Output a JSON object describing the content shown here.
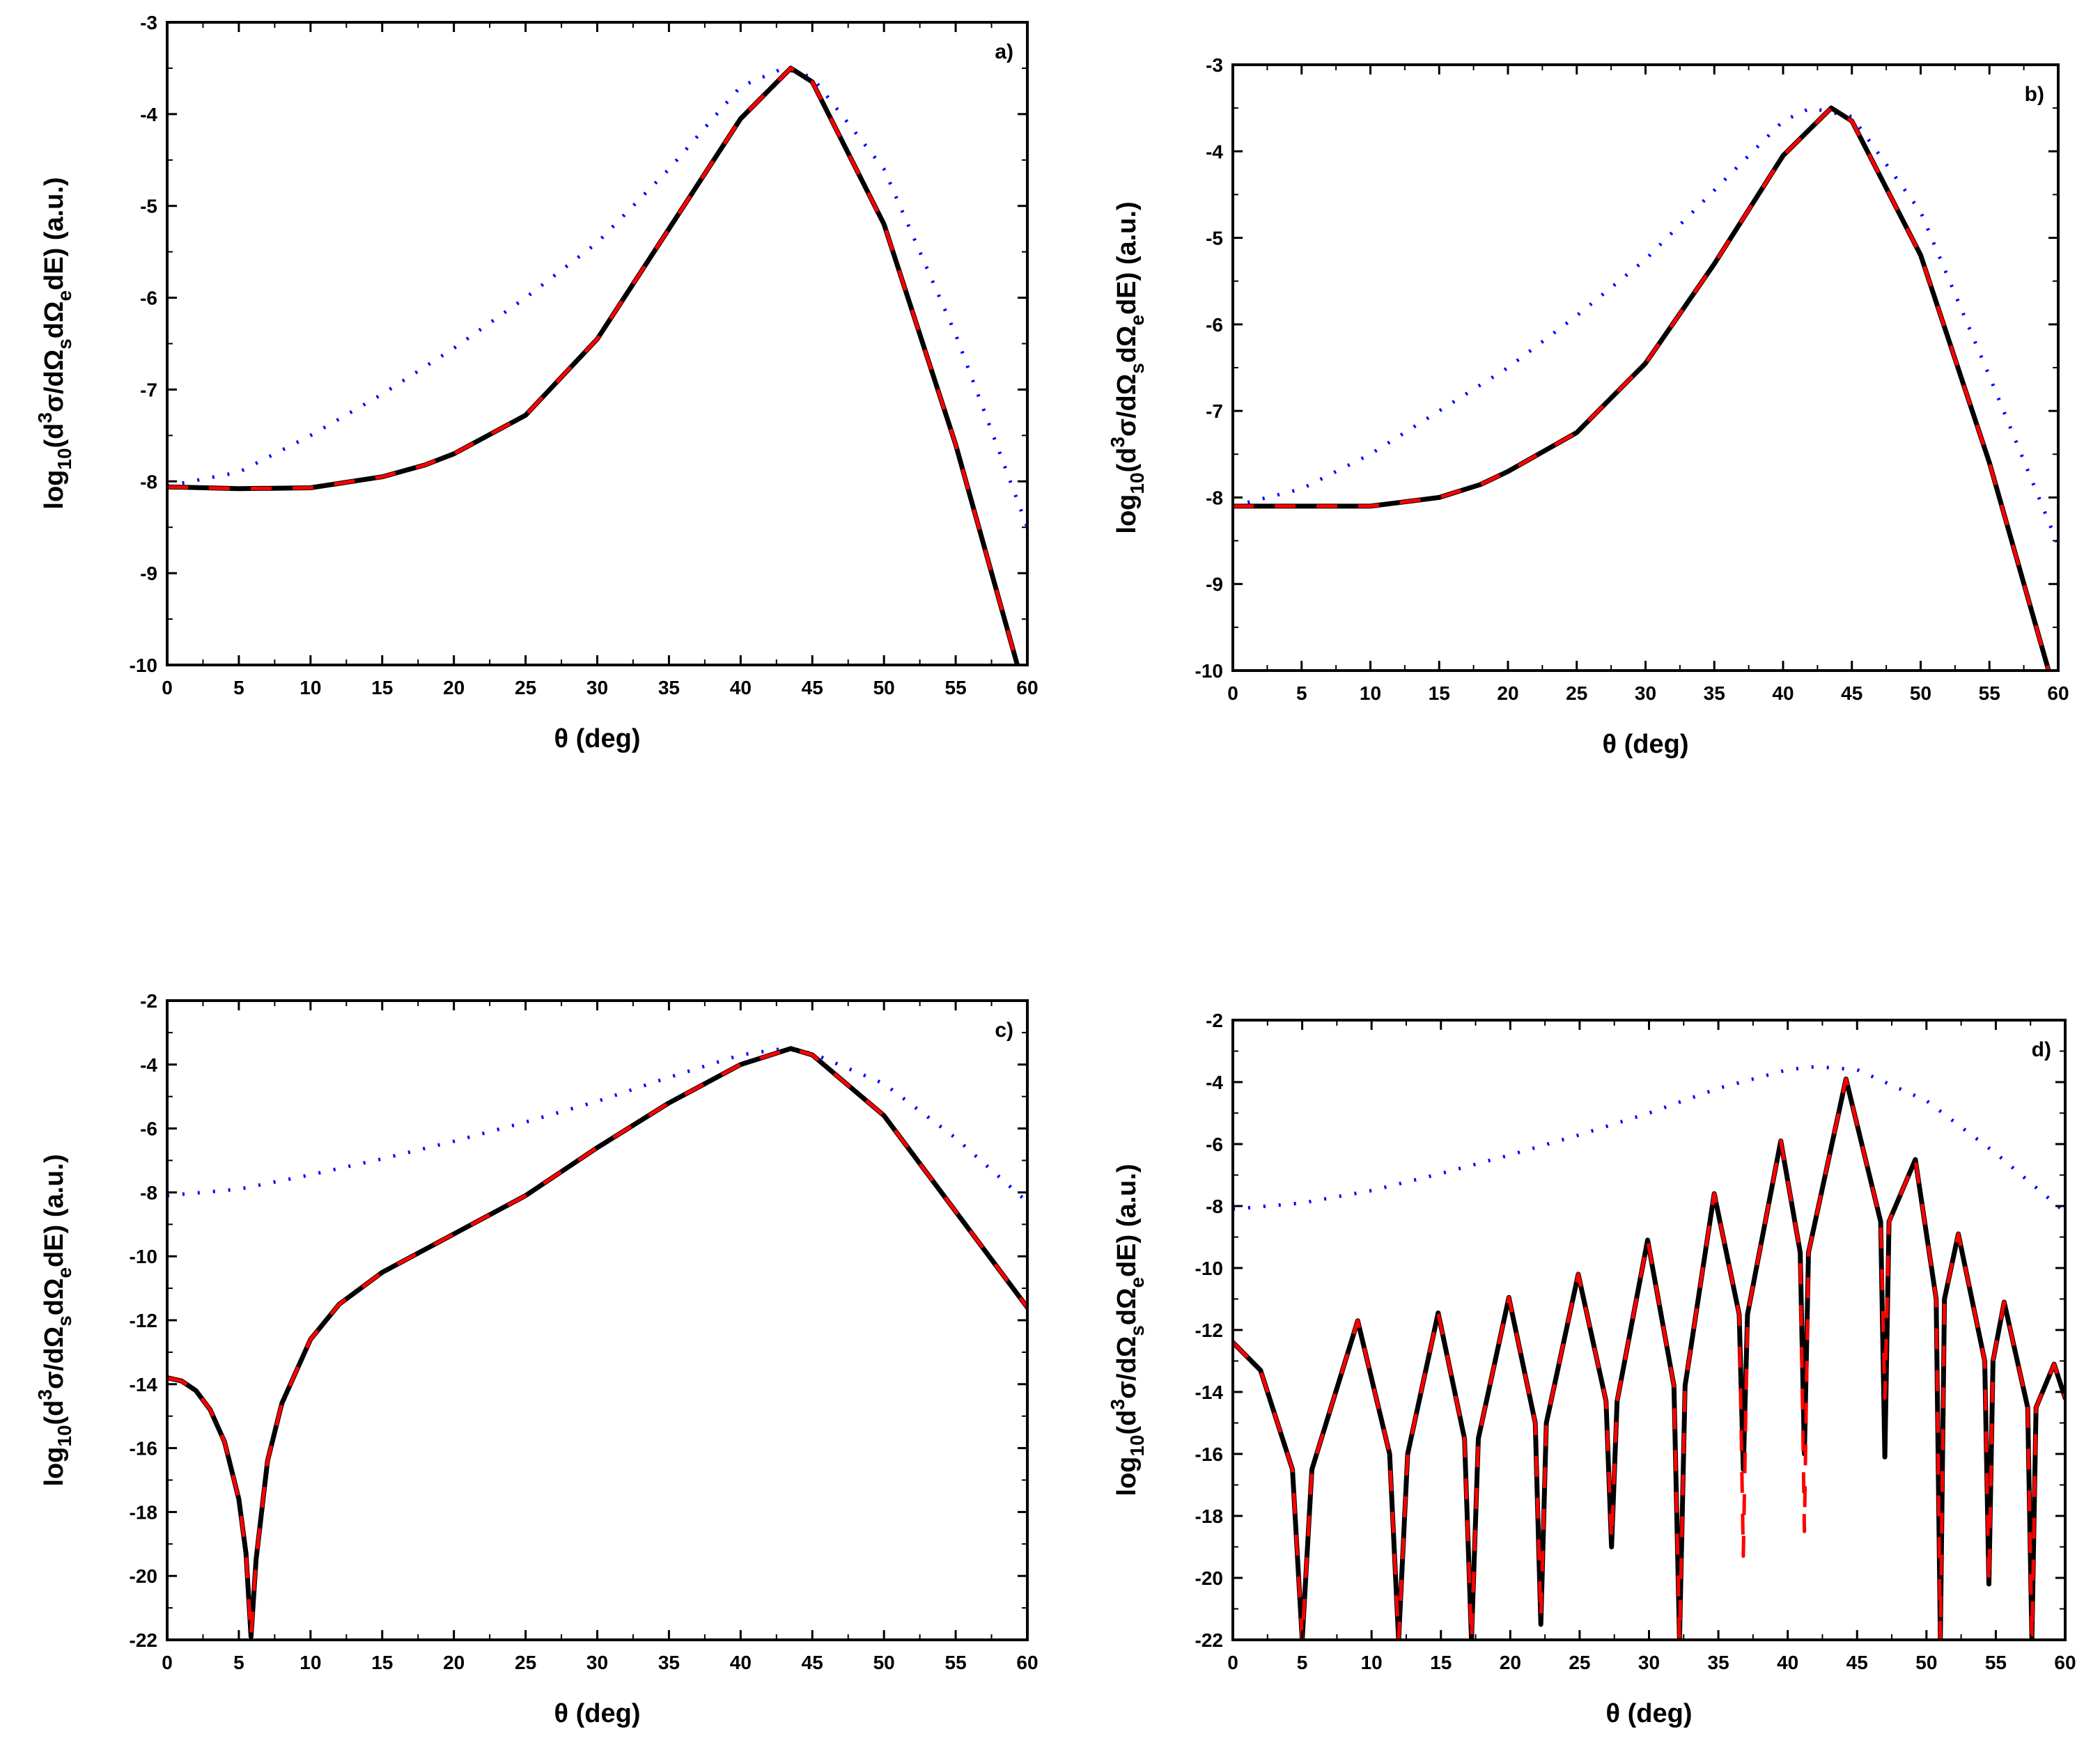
{
  "chart_data": [
    {
      "panel": "a)",
      "type": "line",
      "xlabel": "θ (deg)",
      "ylabel": "log10(d3σ/dΩs dΩe dE) (a.u.)",
      "xlim": [
        0,
        60
      ],
      "ylim": [
        -10,
        -3
      ],
      "xticks": [
        0,
        5,
        10,
        15,
        20,
        25,
        30,
        35,
        40,
        45,
        50,
        55,
        60
      ],
      "yticks": [
        -10,
        -9,
        -8,
        -7,
        -6,
        -5,
        -4,
        -3
      ],
      "series": [
        {
          "name": "dotted",
          "style": "dotted",
          "color": "#0000ff",
          "x": [
            0,
            5,
            10,
            15,
            20,
            25,
            30,
            35,
            40,
            43,
            45,
            50,
            55,
            60
          ],
          "y": [
            -8.05,
            -7.9,
            -7.5,
            -7.05,
            -6.55,
            -6.0,
            -5.4,
            -4.6,
            -3.7,
            -3.5,
            -3.6,
            -4.6,
            -6.4,
            -8.5
          ]
        },
        {
          "name": "solid",
          "style": "solid",
          "color": "#000000",
          "x": [
            0,
            5,
            10,
            15,
            18,
            20,
            25,
            30,
            35,
            40,
            43.5,
            45,
            50,
            55,
            59.3
          ],
          "y": [
            -8.06,
            -8.08,
            -8.07,
            -7.95,
            -7.82,
            -7.7,
            -7.28,
            -6.45,
            -5.25,
            -4.05,
            -3.5,
            -3.65,
            -5.2,
            -7.6,
            -10.0
          ]
        },
        {
          "name": "dashed",
          "style": "dashed",
          "color": "#ff0000",
          "x": [
            0,
            5,
            10,
            15,
            18,
            20,
            25,
            30,
            35,
            40,
            43.5,
            45,
            50,
            55,
            59.3
          ],
          "y": [
            -8.06,
            -8.08,
            -8.07,
            -7.95,
            -7.82,
            -7.7,
            -7.28,
            -6.45,
            -5.25,
            -4.05,
            -3.5,
            -3.65,
            -5.2,
            -7.6,
            -10.0
          ]
        }
      ]
    },
    {
      "panel": "b)",
      "type": "line",
      "xlabel": "θ (deg)",
      "ylabel": "log10(d3σ/dΩs dΩe dE) (a.u.)",
      "xlim": [
        0,
        60
      ],
      "ylim": [
        -10,
        -3
      ],
      "xticks": [
        0,
        5,
        10,
        15,
        20,
        25,
        30,
        35,
        40,
        45,
        50,
        55,
        60
      ],
      "yticks": [
        -10,
        -9,
        -8,
        -7,
        -6,
        -5,
        -4,
        -3
      ],
      "series": [
        {
          "name": "dotted",
          "style": "dotted",
          "color": "#0000ff",
          "x": [
            0,
            5,
            10,
            15,
            20,
            25,
            30,
            35,
            40,
            42,
            45,
            50,
            55,
            60
          ],
          "y": [
            -8.1,
            -7.9,
            -7.5,
            -7.0,
            -6.5,
            -5.9,
            -5.25,
            -4.45,
            -3.65,
            -3.5,
            -3.6,
            -4.7,
            -6.6,
            -8.55
          ]
        },
        {
          "name": "solid",
          "style": "solid",
          "color": "#000000",
          "x": [
            0,
            5,
            10,
            15,
            18,
            20,
            25,
            30,
            35,
            40,
            43.5,
            45,
            50,
            55,
            59.3
          ],
          "y": [
            -8.1,
            -8.1,
            -8.1,
            -8.0,
            -7.85,
            -7.7,
            -7.25,
            -6.45,
            -5.3,
            -4.05,
            -3.5,
            -3.65,
            -5.2,
            -7.6,
            -10.0
          ]
        },
        {
          "name": "dashed",
          "style": "dashed",
          "color": "#ff0000",
          "x": [
            0,
            5,
            10,
            15,
            18,
            20,
            25,
            30,
            35,
            40,
            43.5,
            45,
            50,
            55,
            59.3
          ],
          "y": [
            -8.1,
            -8.1,
            -8.1,
            -8.0,
            -7.85,
            -7.7,
            -7.25,
            -6.45,
            -5.3,
            -4.05,
            -3.5,
            -3.65,
            -5.2,
            -7.6,
            -10.0
          ]
        }
      ]
    },
    {
      "panel": "c)",
      "type": "line",
      "xlabel": "θ (deg)",
      "ylabel": "log10(d3σ/dΩs dΩe dE) (a.u.)",
      "xlim": [
        0,
        60
      ],
      "ylim": [
        -22,
        -2
      ],
      "xticks": [
        0,
        5,
        10,
        15,
        20,
        25,
        30,
        35,
        40,
        45,
        50,
        55,
        60
      ],
      "yticks": [
        -22,
        -20,
        -18,
        -16,
        -14,
        -12,
        -10,
        -8,
        -6,
        -4,
        -2
      ],
      "series": [
        {
          "name": "dotted",
          "style": "dotted",
          "color": "#0000ff",
          "x": [
            0,
            5,
            10,
            15,
            20,
            25,
            30,
            35,
            40,
            43,
            45,
            50,
            55,
            60
          ],
          "y": [
            -8.1,
            -7.9,
            -7.45,
            -6.95,
            -6.4,
            -5.8,
            -5.15,
            -4.4,
            -3.7,
            -3.5,
            -3.65,
            -4.6,
            -6.3,
            -8.3
          ]
        },
        {
          "name": "solid",
          "style": "solid",
          "color": "#000000",
          "x": [
            0,
            1,
            2,
            3,
            4,
            5,
            5.5,
            5.85,
            6.2,
            7,
            8,
            10,
            12,
            15,
            20,
            25,
            30,
            35,
            40,
            43.5,
            45,
            50,
            55,
            60
          ],
          "y": [
            -13.8,
            -13.9,
            -14.2,
            -14.8,
            -15.8,
            -17.6,
            -19.3,
            -21.9,
            -19.5,
            -16.4,
            -14.6,
            -12.6,
            -11.5,
            -10.5,
            -9.3,
            -8.1,
            -6.6,
            -5.2,
            -4.0,
            -3.5,
            -3.7,
            -5.6,
            -8.6,
            -11.6
          ]
        },
        {
          "name": "dashed",
          "style": "dashed",
          "color": "#ff0000",
          "x": [
            0,
            1,
            2,
            3,
            4,
            5,
            5.5,
            5.85,
            6.2,
            7,
            8,
            10,
            12,
            15,
            20,
            25,
            30,
            35,
            40,
            43.5,
            45,
            50,
            55,
            60
          ],
          "y": [
            -13.8,
            -13.9,
            -14.2,
            -14.8,
            -15.8,
            -17.6,
            -19.3,
            -21.9,
            -19.5,
            -16.4,
            -14.6,
            -12.6,
            -11.5,
            -10.5,
            -9.3,
            -8.1,
            -6.6,
            -5.2,
            -4.0,
            -3.5,
            -3.7,
            -5.6,
            -8.6,
            -11.6
          ]
        }
      ]
    },
    {
      "panel": "d)",
      "type": "line",
      "xlabel": "θ (deg)",
      "ylabel": "log10(d3σ/dΩs dΩe dE) (a.u.)",
      "xlim": [
        0,
        60
      ],
      "ylim": [
        -22,
        -2
      ],
      "xticks": [
        0,
        5,
        10,
        15,
        20,
        25,
        30,
        35,
        40,
        45,
        50,
        55,
        60
      ],
      "yticks": [
        -22,
        -20,
        -18,
        -16,
        -14,
        -12,
        -10,
        -8,
        -6,
        -4,
        -2
      ],
      "series": [
        {
          "name": "dotted",
          "style": "dotted",
          "color": "#0000ff",
          "x": [
            0,
            5,
            10,
            15,
            20,
            25,
            30,
            35,
            40,
            42,
            45,
            50,
            55,
            60
          ],
          "y": [
            -8.1,
            -7.9,
            -7.5,
            -6.95,
            -6.35,
            -5.7,
            -5.0,
            -4.2,
            -3.6,
            -3.5,
            -3.6,
            -4.6,
            -6.3,
            -8.2
          ]
        },
        {
          "name": "solid",
          "style": "solid",
          "color": "#000000",
          "x": [
            0,
            2,
            4.3,
            5.0,
            5.7,
            9.0,
            11.3,
            11.95,
            12.6,
            14.8,
            16.7,
            17.2,
            17.7,
            19.9,
            21.8,
            22.2,
            22.6,
            24.9,
            26.9,
            27.3,
            27.7,
            29.9,
            31.8,
            32.2,
            32.6,
            34.7,
            36.5,
            36.8,
            37.1,
            39.5,
            40.9,
            41.2,
            41.5,
            44.2,
            46.7,
            47.0,
            47.3,
            49.2,
            50.7,
            51.0,
            51.3,
            52.3,
            54.2,
            54.5,
            54.8,
            55.6,
            57.3,
            57.6,
            57.9,
            59.2,
            60.0
          ],
          "y": [
            -12.4,
            -13.3,
            -16.5,
            -22,
            -16.5,
            -11.7,
            -16.0,
            -22,
            -16.0,
            -11.45,
            -15.5,
            -22,
            -15.5,
            -10.95,
            -15.0,
            -21.5,
            -15.0,
            -10.2,
            -14.3,
            -19.0,
            -14.3,
            -9.1,
            -13.8,
            -22,
            -13.8,
            -7.6,
            -11.5,
            -16.5,
            -11.5,
            -5.9,
            -9.5,
            -16.0,
            -9.5,
            -3.9,
            -8.5,
            -16.1,
            -8.5,
            -6.5,
            -11.0,
            -22,
            -11.0,
            -8.9,
            -13.0,
            -20.2,
            -13.0,
            -11.1,
            -14.5,
            -22,
            -14.5,
            -13.1,
            -14.2
          ]
        },
        {
          "name": "dashed",
          "style": "dashed",
          "color": "#ff0000",
          "x": [
            0,
            2,
            4.3,
            5.0,
            5.7,
            9.0,
            11.3,
            11.95,
            12.6,
            14.8,
            16.7,
            17.2,
            17.7,
            19.9,
            21.8,
            22.2,
            22.6,
            24.9,
            26.9,
            27.3,
            27.7,
            29.9,
            31.8,
            32.2,
            32.6,
            34.7,
            36.5,
            36.8,
            37.1,
            39.5,
            40.9,
            41.2,
            41.5,
            44.2,
            46.7,
            47.0,
            47.3,
            49.2,
            50.7,
            51.0,
            51.3,
            52.3,
            54.2,
            54.5,
            54.8,
            55.6,
            57.3,
            57.6,
            57.9,
            59.2,
            60.0
          ],
          "y": [
            -12.4,
            -13.3,
            -16.5,
            -22,
            -16.5,
            -11.7,
            -16.0,
            -22,
            -16.0,
            -11.45,
            -15.5,
            -22,
            -15.5,
            -10.95,
            -15.0,
            -21.3,
            -15.0,
            -10.2,
            -14.3,
            -18.8,
            -14.3,
            -9.1,
            -13.8,
            -22,
            -13.8,
            -7.6,
            -11.5,
            -19.3,
            -11.5,
            -5.9,
            -9.5,
            -18.5,
            -9.5,
            -3.9,
            -8.5,
            -14.2,
            -8.5,
            -6.5,
            -11.0,
            -22,
            -11.0,
            -8.9,
            -13.0,
            -20.2,
            -13.0,
            -11.1,
            -14.5,
            -22,
            -14.5,
            -13.1,
            -14.2
          ]
        }
      ]
    }
  ]
}
